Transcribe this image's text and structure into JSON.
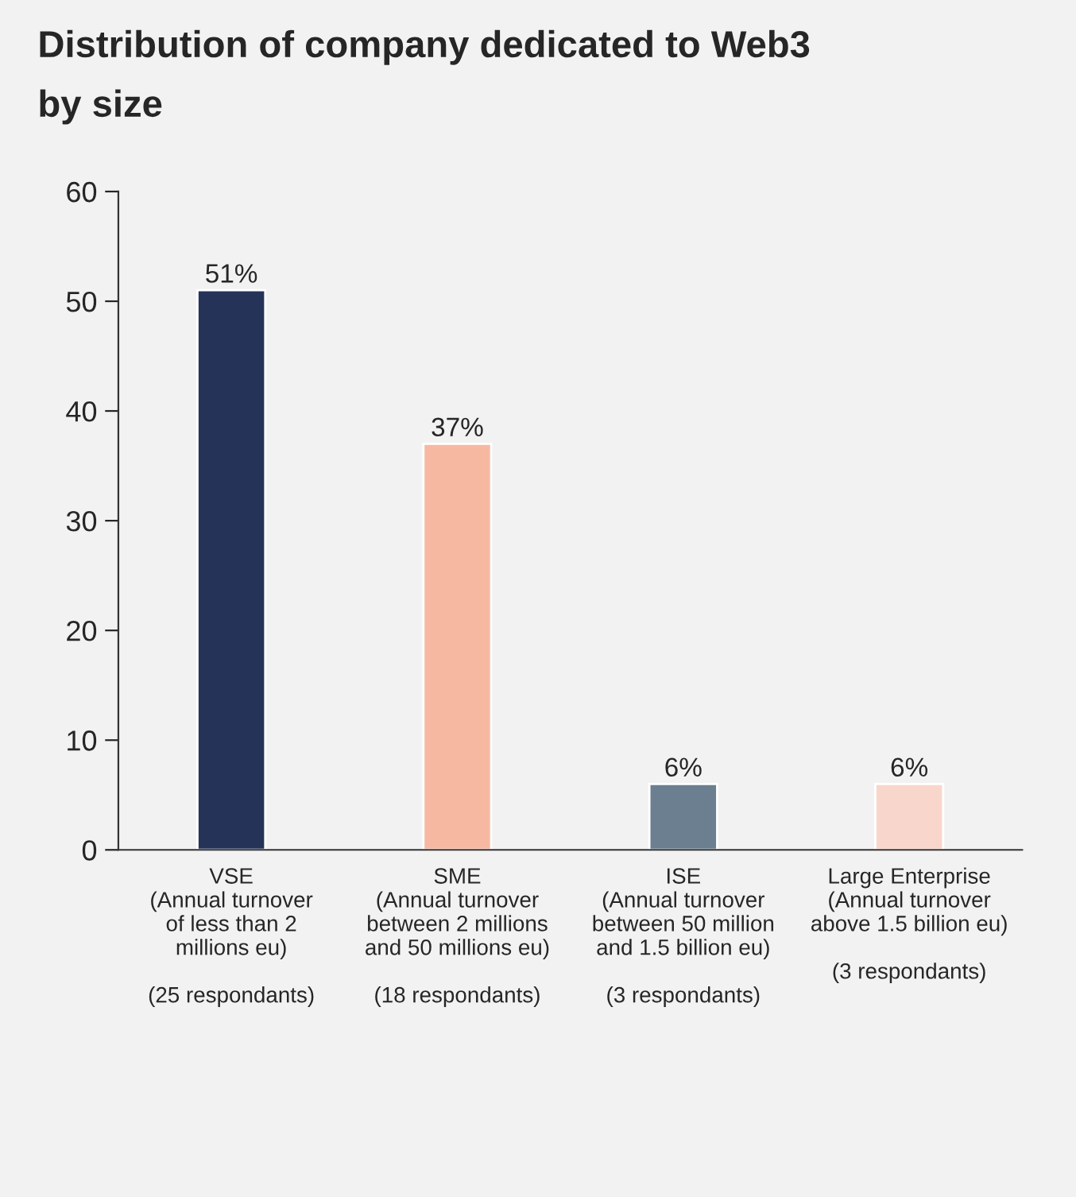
{
  "chart_data": {
    "type": "bar",
    "title": "Distribution of company dedicated to Web3\nby size",
    "categories": [
      "VSE\n(Annual turnover\nof less than 2\nmillions eu)\n\n(25 respondants)",
      "SME\n(Annual turnover\nbetween 2 millions\nand 50 millions eu)\n\n(18 respondants)",
      "ISE\n(Annual turnover\nbetween 50 million\nand 1.5 billion eu)\n\n(3 respondants)",
      "Large Enterprise\n(Annual turnover\nabove 1.5 billion eu)\n\n(3 respondants)"
    ],
    "values": [
      51,
      37,
      6,
      6
    ],
    "colors": [
      "#253358",
      "#f7b8a2",
      "#6b7f91",
      "#f9d6cb"
    ],
    "value_labels": [
      "51%",
      "37%",
      "6%",
      "6%"
    ],
    "ylim": [
      0,
      60
    ],
    "yticks": [
      0,
      10,
      20,
      30,
      40,
      50,
      60
    ],
    "grid": false,
    "legend": false
  }
}
